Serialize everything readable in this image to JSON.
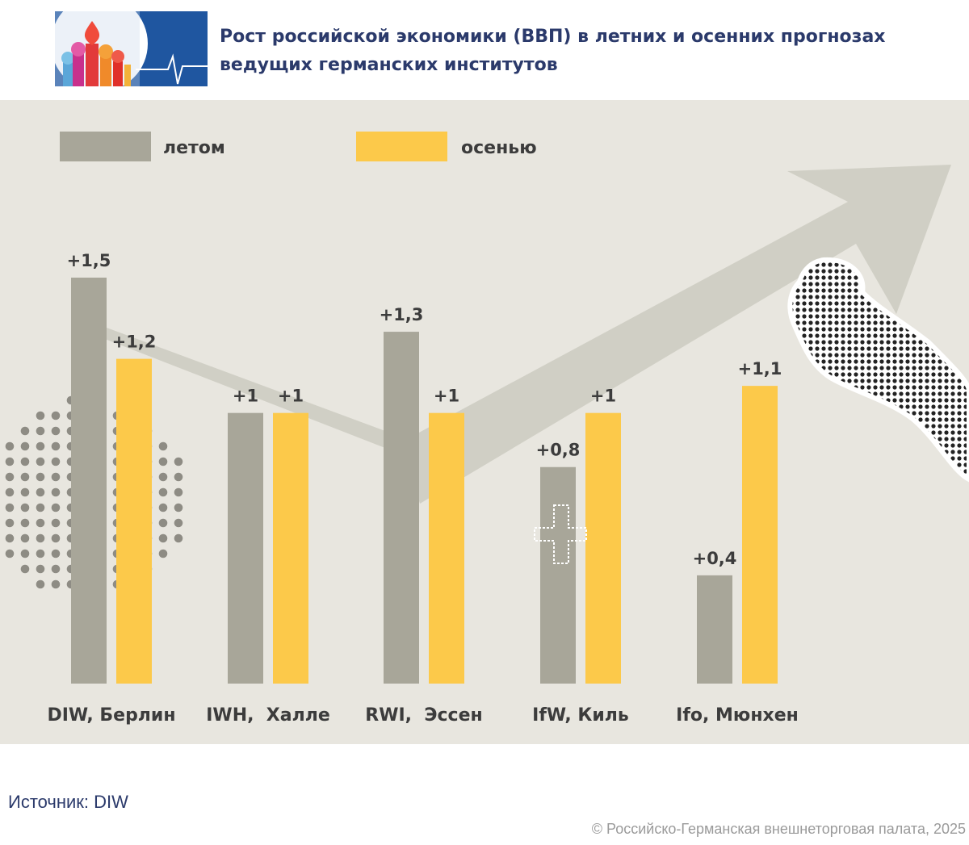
{
  "header": {
    "title": "Рост российской экономики (ВВП) в летних и осенних прогнозах ведущих германских институтов"
  },
  "chart_data": {
    "type": "bar",
    "categories": [
      "DIW, Берлин",
      "IWH,  Халле",
      "RWI,  Эссен",
      "IfW, Киль",
      "Ifo, Мюнхен"
    ],
    "series": [
      {
        "name": "летом",
        "values": [
          1.5,
          1,
          1.3,
          0.8,
          0.4
        ],
        "labels": [
          "+1,5",
          "+1",
          "+1,3",
          "+0,8",
          "+0,4"
        ],
        "color": "#a8a699"
      },
      {
        "name": "осенью",
        "values": [
          1.2,
          1,
          1,
          1,
          1.1
        ],
        "labels": [
          "+1,2",
          "+1",
          "+1",
          "+1",
          "+1,1"
        ],
        "color": "#fcc94a"
      }
    ],
    "ylim": [
      0,
      1.5
    ],
    "legend": "top-left",
    "grid": false,
    "title": "",
    "xlabel": "",
    "ylabel": ""
  },
  "colors": {
    "background_panel": "#e8e6df",
    "title": "#2b3a6b",
    "arrow": "#cfcdc3"
  },
  "decorations": {
    "logo": "kremlin-domes-logo",
    "arrow": "trend-arrow-icon",
    "hand": "halftone-hand-icon",
    "cross": "plus-sign-icon",
    "dots": "dot-pattern"
  },
  "footer": {
    "source": "Источник: DIW",
    "copyright": "© Российско-Германская внешнеторговая палата, 2025"
  }
}
